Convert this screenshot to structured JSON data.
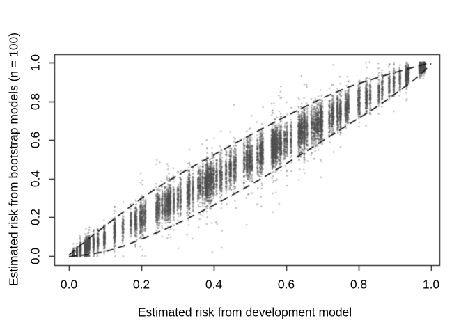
{
  "chart_data": {
    "type": "scatter",
    "title": "",
    "xlabel": "Estimated risk from development model",
    "ylabel": "Estimated risk from bootstrap models (n = 100)",
    "xlim": [
      0,
      1
    ],
    "ylim": [
      0,
      1
    ],
    "x_ticks": [
      0.0,
      0.2,
      0.4,
      0.6,
      0.8,
      1.0
    ],
    "y_ticks": [
      0.0,
      0.2,
      0.4,
      0.6,
      0.8,
      1.0
    ],
    "x_tick_labels": [
      "0.0",
      "0.2",
      "0.4",
      "0.6",
      "0.8",
      "1.0"
    ],
    "y_tick_labels": [
      "0.0",
      "0.2",
      "0.4",
      "0.6",
      "0.8",
      "1.0"
    ],
    "grid": false,
    "legend": "none",
    "point_color": "rgba(80,80,80,0.38)",
    "point_radius": 1.25,
    "envelope_style": "dashed",
    "envelope_color": "#141414",
    "envelope_upper": [
      [
        0,
        0.005
      ],
      [
        0.05,
        0.085
      ],
      [
        0.12,
        0.185
      ],
      [
        0.2,
        0.3
      ],
      [
        0.3,
        0.42
      ],
      [
        0.45,
        0.575
      ],
      [
        0.6,
        0.725
      ],
      [
        0.75,
        0.862
      ],
      [
        0.85,
        0.922
      ],
      [
        0.93,
        0.965
      ],
      [
        1,
        1.0
      ]
    ],
    "envelope_lower": [
      [
        0,
        -0.003
      ],
      [
        0.08,
        0.012
      ],
      [
        0.15,
        0.05
      ],
      [
        0.25,
        0.125
      ],
      [
        0.35,
        0.213
      ],
      [
        0.5,
        0.365
      ],
      [
        0.62,
        0.5
      ],
      [
        0.75,
        0.655
      ],
      [
        0.85,
        0.77
      ],
      [
        0.93,
        0.878
      ],
      [
        0.97,
        0.936
      ],
      [
        1,
        0.995
      ]
    ],
    "scatter_generator": {
      "description": "Vertical columns of bootstrap risk estimates: one column per development-model prediction, ~100 bootstrap estimates per column, spread ~ sd = 0.1*sqrt(x*(1-x)) around the diagonal y = x, converging at (0,0) and (1,1) with a dense clump near (0.98, 0.98).",
      "points_per_column": 100,
      "sd_scale": 0.1,
      "sd_min": 0.006,
      "wide_tail_fraction": 0.07,
      "wide_tail_factor": 2.3,
      "seed": 42,
      "column_segments": [
        {
          "range": [
            0.004,
            0.05
          ],
          "n": 7
        },
        {
          "range": [
            0.05,
            0.12
          ],
          "n": 7
        },
        {
          "range": [
            0.12,
            0.22
          ],
          "n": 10
        },
        {
          "range": [
            0.22,
            0.38
          ],
          "n": 22
        },
        {
          "range": [
            0.38,
            0.465
          ],
          "n": 16
        },
        {
          "range": [
            0.478,
            0.6
          ],
          "n": 24
        },
        {
          "range": [
            0.6,
            0.78
          ],
          "n": 30
        },
        {
          "range": [
            0.78,
            0.945
          ],
          "n": 14
        },
        {
          "range": [
            0.968,
            0.988
          ],
          "n": 4
        }
      ]
    }
  }
}
